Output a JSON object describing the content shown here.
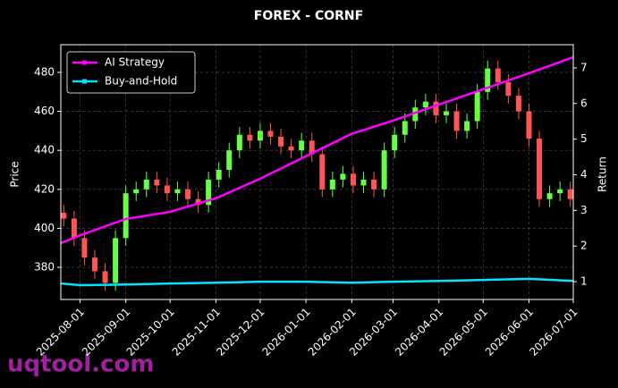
{
  "chart_data": {
    "type": "candlestick",
    "title": "FOREX - CORNF",
    "ylabel": "Price",
    "y2label": "Return",
    "watermark": "uqtool.com",
    "xlim": [
      "2025-07-19",
      "2026-07-01"
    ],
    "xticks": [
      "2025-08-01",
      "2025-09-01",
      "2025-10-01",
      "2025-11-01",
      "2025-12-01",
      "2026-01-01",
      "2026-02-01",
      "2026-03-01",
      "2026-04-01",
      "2026-05-01",
      "2026-06-01",
      "2026-07-01"
    ],
    "ylim": [
      363.5,
      494.2
    ],
    "yticks": [
      380,
      400,
      420,
      440,
      460,
      480
    ],
    "y2lim": [
      0.5,
      7.65
    ],
    "y2ticks": [
      1,
      2,
      3,
      4,
      5,
      6,
      7
    ],
    "grid": true,
    "legend": "upper left",
    "up_color": "#66ff44",
    "down_color": "#ff5555",
    "candles": {
      "x": [
        "2025-07-21",
        "2025-07-28",
        "2025-08-04",
        "2025-08-11",
        "2025-08-18",
        "2025-08-25",
        "2025-09-01",
        "2025-09-08",
        "2025-09-15",
        "2025-09-22",
        "2025-09-29",
        "2025-10-06",
        "2025-10-13",
        "2025-10-20",
        "2025-10-27",
        "2025-11-03",
        "2025-11-10",
        "2025-11-17",
        "2025-11-24",
        "2025-12-01",
        "2025-12-08",
        "2025-12-15",
        "2025-12-22",
        "2025-12-29",
        "2026-01-05",
        "2026-01-12",
        "2026-01-19",
        "2026-01-26",
        "2026-02-02",
        "2026-02-09",
        "2026-02-16",
        "2026-02-23",
        "2026-03-02",
        "2026-03-09",
        "2026-03-16",
        "2026-03-23",
        "2026-03-30",
        "2026-04-06",
        "2026-04-13",
        "2026-04-20",
        "2026-04-27",
        "2026-05-04",
        "2026-05-11",
        "2026-05-18",
        "2026-05-25",
        "2026-06-01",
        "2026-06-08",
        "2026-06-15",
        "2026-06-22",
        "2026-06-29"
      ],
      "open": [
        408,
        405,
        395,
        385,
        378,
        372,
        395,
        418,
        420,
        425,
        422,
        418,
        420,
        415,
        412,
        425,
        430,
        440,
        448,
        445,
        450,
        447,
        442,
        440,
        445,
        438,
        420,
        425,
        428,
        422,
        425,
        420,
        440,
        448,
        455,
        462,
        465,
        458,
        460,
        450,
        455,
        470,
        482,
        475,
        468,
        460,
        446,
        415,
        418,
        420
      ],
      "high": [
        412,
        409,
        399,
        389,
        382,
        399,
        422,
        424,
        429,
        429,
        426,
        424,
        424,
        419,
        429,
        434,
        444,
        452,
        452,
        454,
        454,
        451,
        446,
        449,
        449,
        442,
        429,
        432,
        432,
        429,
        429,
        444,
        452,
        459,
        466,
        469,
        469,
        464,
        464,
        459,
        474,
        486,
        486,
        479,
        472,
        464,
        450,
        422,
        424,
        424
      ],
      "low": [
        401,
        391,
        381,
        374,
        368,
        368,
        391,
        414,
        416,
        418,
        414,
        414,
        411,
        408,
        408,
        421,
        426,
        436,
        441,
        441,
        443,
        438,
        436,
        436,
        434,
        416,
        416,
        421,
        418,
        418,
        416,
        416,
        436,
        444,
        451,
        458,
        454,
        454,
        446,
        446,
        451,
        466,
        471,
        464,
        456,
        442,
        411,
        411,
        414,
        411
      ],
      "close": [
        405,
        395,
        385,
        378,
        372,
        395,
        418,
        420,
        425,
        422,
        418,
        420,
        415,
        412,
        425,
        430,
        440,
        448,
        445,
        450,
        447,
        442,
        440,
        445,
        438,
        420,
        425,
        428,
        422,
        425,
        420,
        440,
        448,
        455,
        462,
        465,
        458,
        460,
        450,
        455,
        470,
        482,
        475,
        468,
        460,
        446,
        415,
        418,
        420,
        415
      ]
    },
    "series": [
      {
        "name": "AI Strategy",
        "color": "#ff00ff",
        "axis": "y2",
        "x": [
          "2025-07-19",
          "2025-08-01",
          "2025-09-01",
          "2025-10-01",
          "2025-11-01",
          "2025-12-01",
          "2026-01-01",
          "2026-02-01",
          "2026-03-01",
          "2026-04-01",
          "2026-05-01",
          "2026-06-01",
          "2026-07-01"
        ],
        "values": [
          2.08,
          2.3,
          2.76,
          2.96,
          3.34,
          3.89,
          4.52,
          5.15,
          5.52,
          5.97,
          6.4,
          6.85,
          7.3
        ]
      },
      {
        "name": "Buy-and-Hold",
        "color": "#00e5ff",
        "axis": "y2",
        "x": [
          "2025-07-19",
          "2025-08-01",
          "2025-09-01",
          "2025-10-01",
          "2025-11-01",
          "2025-12-01",
          "2026-01-01",
          "2026-02-01",
          "2026-03-01",
          "2026-04-01",
          "2026-05-01",
          "2026-06-01",
          "2026-07-01"
        ],
        "values": [
          0.95,
          0.9,
          0.92,
          0.95,
          0.97,
          1.0,
          1.0,
          0.97,
          1.0,
          1.02,
          1.05,
          1.08,
          1.02
        ]
      }
    ]
  }
}
